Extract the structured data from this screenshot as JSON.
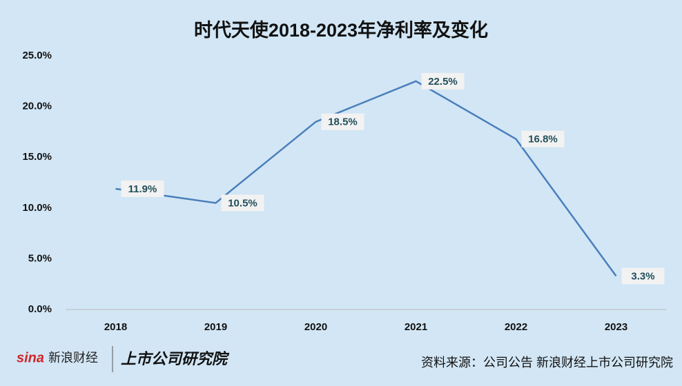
{
  "chart_data": {
    "type": "line",
    "title": "时代天使2018-2023年净利率及变化",
    "categories": [
      "2018",
      "2019",
      "2020",
      "2021",
      "2022",
      "2023"
    ],
    "series": [
      {
        "color": "#4a7ebb",
        "values": [
          11.9,
          10.5,
          18.5,
          22.5,
          16.8,
          3.3
        ],
        "value_labels": [
          "11.9%",
          "10.5%",
          "18.5%",
          "22.5%",
          "16.8%",
          "3.3%"
        ]
      }
    ],
    "ylim": [
      0,
      25
    ],
    "yticks": [
      {
        "value": 0,
        "label": "0.0%"
      },
      {
        "value": 5,
        "label": "5.0%"
      },
      {
        "value": 10,
        "label": "10.0%"
      },
      {
        "value": 15,
        "label": "15.0%"
      },
      {
        "value": 20,
        "label": "20.0%"
      },
      {
        "value": 25,
        "label": "25.0%"
      }
    ],
    "source": "资料来源：公司公告 新浪财经上市公司研究院",
    "logo": [
      "sina",
      "新浪财经",
      "上市公司研究院"
    ]
  }
}
